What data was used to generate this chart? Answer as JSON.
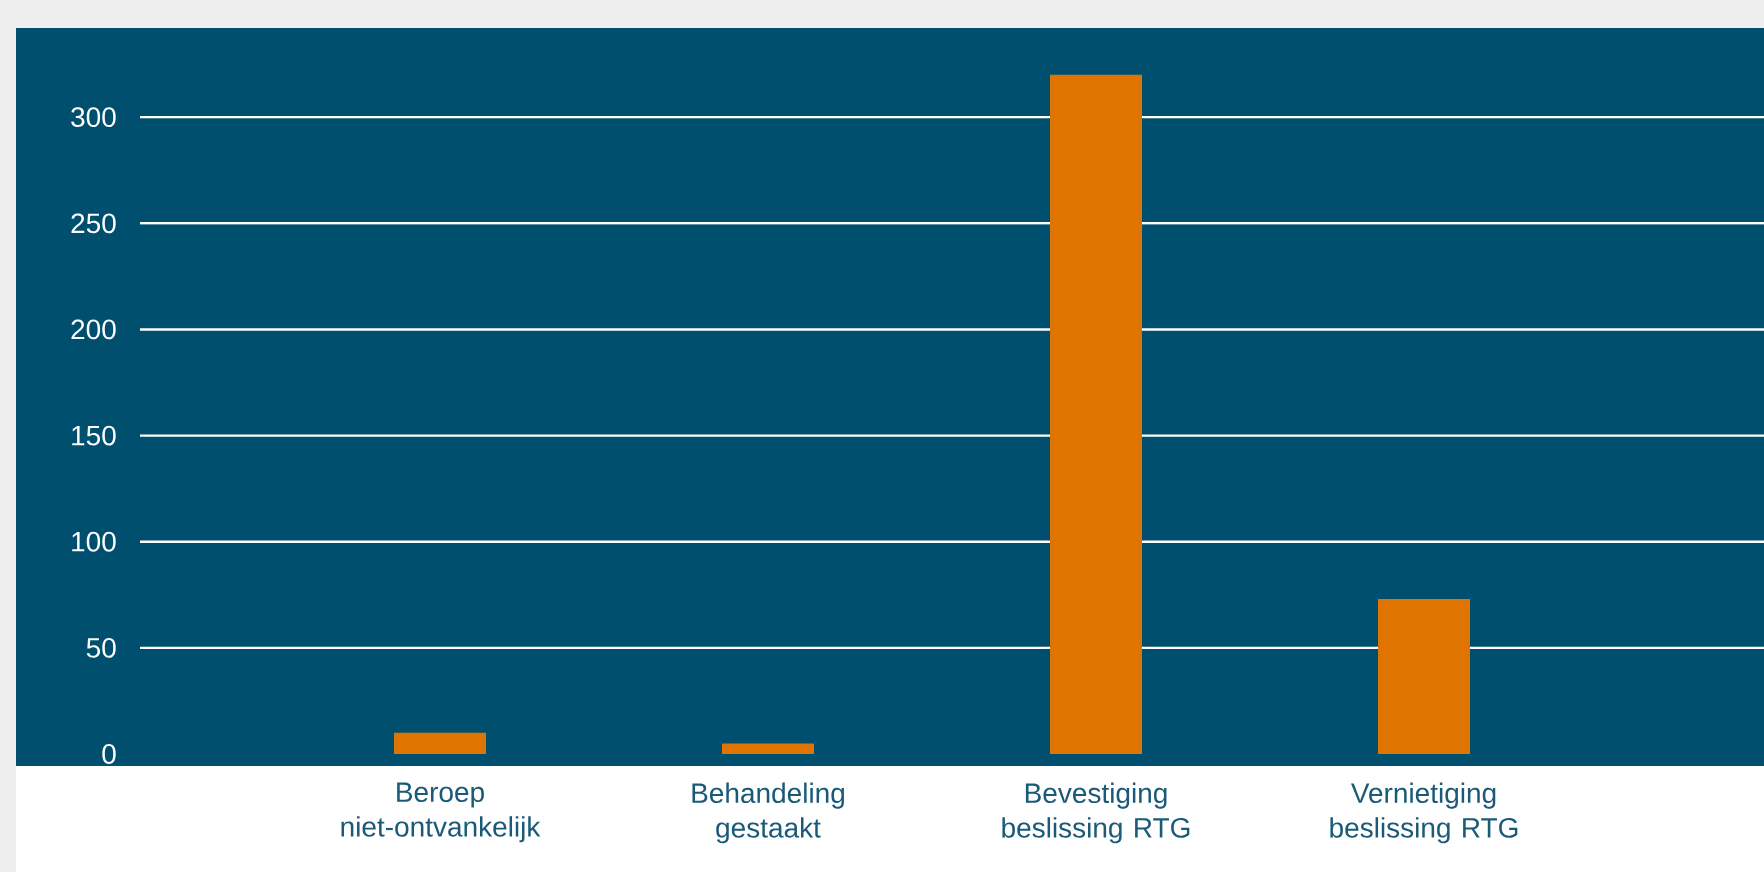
{
  "chart_data": {
    "type": "bar",
    "categories": [
      "Beroep niet-ontvankelijk",
      "Behandeling gestaakt",
      "Bevestiging beslissing RTG",
      "Vernietiging beslissing RTG"
    ],
    "values": [
      10,
      5,
      320,
      73
    ],
    "color": "#e07400",
    "ylim": [
      0,
      342
    ],
    "yticks": [
      0,
      50,
      100,
      150,
      200,
      250,
      300
    ],
    "grid": "y"
  }
}
